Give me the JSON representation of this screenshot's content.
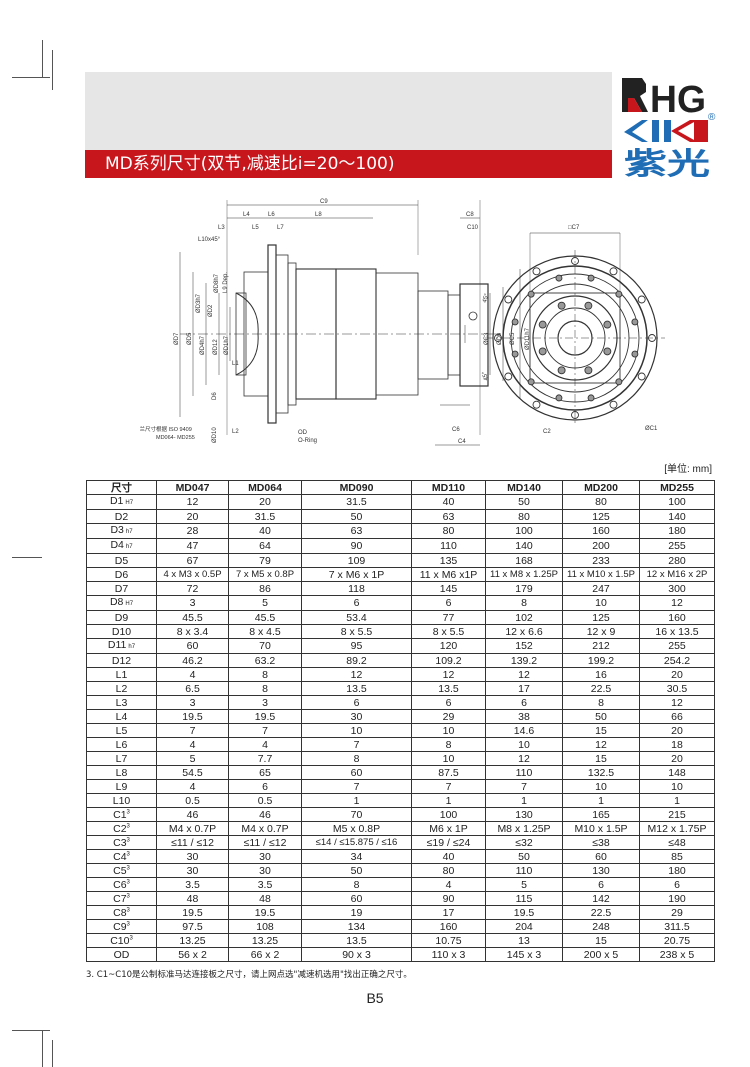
{
  "header": {
    "title": "MD系列尺寸(双节,减速比i=20～100)",
    "logo": {
      "line1": "RHG",
      "line2": "ZIK",
      "line3": "紫光",
      "registered": "®"
    },
    "colors": {
      "red": "#c8161d",
      "blue": "#1f6db5",
      "black": "#222222",
      "banner": "#e6e6e6"
    }
  },
  "drawing": {
    "side_labels": {
      "c9": "C9",
      "l4": "L4",
      "l6": "L6",
      "l8": "L8",
      "c8": "C8",
      "l3": "L3",
      "l5": "L5",
      "l7": "L7",
      "c10": "C10",
      "l10": "L10x45°",
      "d8": "ØD8h7",
      "l9": "L9 Dep.",
      "d7": "ØD7",
      "d5": "ØD5",
      "d4": "ØD4h7",
      "d12": "ØD12",
      "d3": "ØD3h7",
      "d2": "ØD2",
      "d1": "ØD1h7",
      "l1": "L1",
      "d6": "D6",
      "d10": "ØD10",
      "l2": "L2",
      "c3": "ØC3",
      "d9": "ØD9",
      "c5": "ØC5",
      "d11": "ØD11h7",
      "c6": "C6",
      "c4": "C4",
      "od": "OD",
      "oring": "O-Ring",
      "flange_note": "法兰尺寸根据 ISO 9409",
      "flange_range": "MD064- MD255"
    },
    "front_labels": {
      "c7": "□C7",
      "c1": "ØC1",
      "c2": "C2",
      "angle1": "45°",
      "angle2": "45°"
    },
    "front_angles_deg": [
      45,
      45
    ]
  },
  "table": {
    "unit": "[单位: mm]",
    "headers": [
      "尺寸",
      "MD047",
      "MD064",
      "MD090",
      "MD110",
      "MD140",
      "MD200",
      "MD255"
    ],
    "rows": [
      {
        "label": "D1",
        "sub": "H7",
        "values": [
          "12",
          "20",
          "31.5",
          "40",
          "50",
          "80",
          "100"
        ]
      },
      {
        "label": "D2",
        "values": [
          "20",
          "31.5",
          "50",
          "63",
          "80",
          "125",
          "140"
        ]
      },
      {
        "label": "D3",
        "sub": "h7",
        "values": [
          "28",
          "40",
          "63",
          "80",
          "100",
          "160",
          "180"
        ]
      },
      {
        "label": "D4",
        "sub": "h7",
        "values": [
          "47",
          "64",
          "90",
          "110",
          "140",
          "200",
          "255"
        ]
      },
      {
        "label": "D5",
        "values": [
          "67",
          "79",
          "109",
          "135",
          "168",
          "233",
          "280"
        ]
      },
      {
        "label": "D6",
        "values": [
          "4 x M3 x 0.5P",
          "7 x M5 x 0.8P",
          "7 x M6 x 1P",
          "11 x M6 x1P",
          "11 x M8 x 1.25P",
          "11 x M10 x 1.5P",
          "12 x M16 x 2P"
        ]
      },
      {
        "label": "D7",
        "values": [
          "72",
          "86",
          "118",
          "145",
          "179",
          "247",
          "300"
        ]
      },
      {
        "label": "D8",
        "sub": "H7",
        "values": [
          "3",
          "5",
          "6",
          "6",
          "8",
          "10",
          "12"
        ]
      },
      {
        "label": "D9",
        "values": [
          "45.5",
          "45.5",
          "53.4",
          "77",
          "102",
          "125",
          "160"
        ]
      },
      {
        "label": "D10",
        "values": [
          "8 x 3.4",
          "8 x 4.5",
          "8 x 5.5",
          "8 x 5.5",
          "12 x 6.6",
          "12 x 9",
          "16 x 13.5"
        ]
      },
      {
        "label": "D11",
        "sub": "h7",
        "values": [
          "60",
          "70",
          "95",
          "120",
          "152",
          "212",
          "255"
        ]
      },
      {
        "label": "D12",
        "values": [
          "46.2",
          "63.2",
          "89.2",
          "109.2",
          "139.2",
          "199.2",
          "254.2"
        ]
      },
      {
        "label": "L1",
        "values": [
          "4",
          "8",
          "12",
          "12",
          "12",
          "16",
          "20"
        ]
      },
      {
        "label": "L2",
        "values": [
          "6.5",
          "8",
          "13.5",
          "13.5",
          "17",
          "22.5",
          "30.5"
        ]
      },
      {
        "label": "L3",
        "values": [
          "3",
          "3",
          "6",
          "6",
          "6",
          "8",
          "12"
        ]
      },
      {
        "label": "L4",
        "values": [
          "19.5",
          "19.5",
          "30",
          "29",
          "38",
          "50",
          "66"
        ]
      },
      {
        "label": "L5",
        "values": [
          "7",
          "7",
          "10",
          "10",
          "14.6",
          "15",
          "20"
        ]
      },
      {
        "label": "L6",
        "values": [
          "4",
          "4",
          "7",
          "8",
          "10",
          "12",
          "18"
        ]
      },
      {
        "label": "L7",
        "values": [
          "5",
          "7.7",
          "8",
          "10",
          "12",
          "15",
          "20"
        ]
      },
      {
        "label": "L8",
        "values": [
          "54.5",
          "65",
          "60",
          "87.5",
          "110",
          "132.5",
          "148"
        ]
      },
      {
        "label": "L9",
        "values": [
          "4",
          "6",
          "7",
          "7",
          "7",
          "10",
          "10"
        ]
      },
      {
        "label": "L10",
        "values": [
          "0.5",
          "0.5",
          "1",
          "1",
          "1",
          "1",
          "1"
        ]
      },
      {
        "label": "C1",
        "sup": "3",
        "values": [
          "46",
          "46",
          "70",
          "100",
          "130",
          "165",
          "215"
        ]
      },
      {
        "label": "C2",
        "sup": "3",
        "values": [
          "M4 x 0.7P",
          "M4 x 0.7P",
          "M5 x 0.8P",
          "M6 x 1P",
          "M8 x 1.25P",
          "M10 x 1.5P",
          "M12 x 1.75P"
        ]
      },
      {
        "label": "C3",
        "sup": "3",
        "values": [
          "≤11 / ≤12",
          "≤11 / ≤12",
          "≤14 / ≤15.875 / ≤16",
          "≤19 / ≤24",
          "≤32",
          "≤38",
          "≤48"
        ]
      },
      {
        "label": "C4",
        "sup": "3",
        "values": [
          "30",
          "30",
          "34",
          "40",
          "50",
          "60",
          "85"
        ]
      },
      {
        "label": "C5",
        "sup": "3",
        "values": [
          "30",
          "30",
          "50",
          "80",
          "110",
          "130",
          "180"
        ]
      },
      {
        "label": "C6",
        "sup": "3",
        "values": [
          "3.5",
          "3.5",
          "8",
          "4",
          "5",
          "6",
          "6"
        ]
      },
      {
        "label": "C7",
        "sup": "3",
        "values": [
          "48",
          "48",
          "60",
          "90",
          "115",
          "142",
          "190"
        ]
      },
      {
        "label": "C8",
        "sup": "3",
        "values": [
          "19.5",
          "19.5",
          "19",
          "17",
          "19.5",
          "22.5",
          "29"
        ]
      },
      {
        "label": "C9",
        "sup": "3",
        "values": [
          "97.5",
          "108",
          "134",
          "160",
          "204",
          "248",
          "311.5"
        ]
      },
      {
        "label": "C10",
        "sup": "3",
        "values": [
          "13.25",
          "13.25",
          "13.5",
          "10.75",
          "13",
          "15",
          "20.75"
        ]
      },
      {
        "label": "OD",
        "values": [
          "56 x 2",
          "66 x 2",
          "90 x 3",
          "110 x 3",
          "145 x 3",
          "200 x 5",
          "238 x 5"
        ]
      }
    ]
  },
  "footnote": "3. C1~C10是公制标准马达连接板之尺寸，请上网点选\"减速机选用\"找出正确之尺寸。",
  "page_number": "B5"
}
